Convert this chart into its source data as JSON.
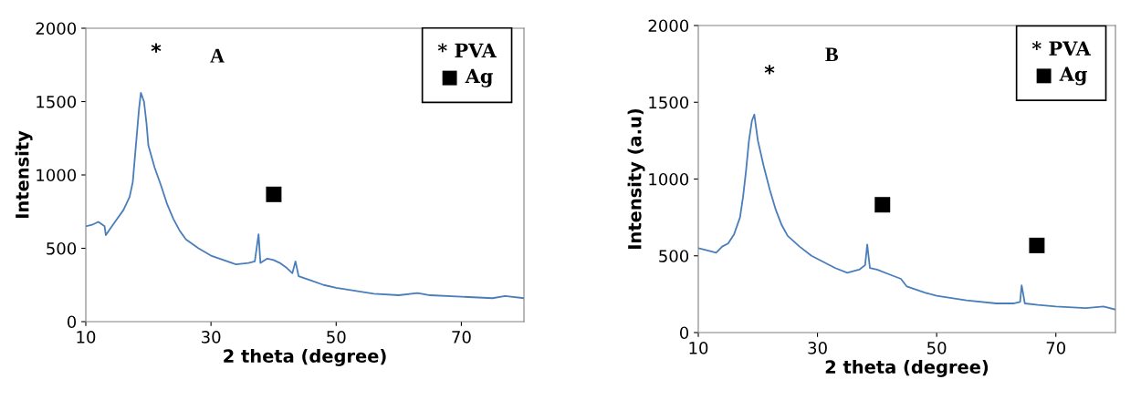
{
  "chart_data": [
    {
      "type": "line",
      "title": "A",
      "xlabel": "2 theta (degree)",
      "ylabel": "Intensity",
      "xlim": [
        10,
        80
      ],
      "xticks": [
        10,
        30,
        50,
        70
      ],
      "ylim": [
        0,
        2000
      ],
      "yticks": [
        0,
        500,
        1000,
        1500,
        2000
      ],
      "grid": false,
      "legend": false,
      "series": [
        {
          "color": "#4a7ebb",
          "x": [
            10,
            11,
            12,
            13,
            13.2,
            14,
            15,
            16,
            17,
            17.5,
            18,
            18.5,
            18.8,
            19.3,
            19.7,
            20,
            21,
            22,
            23,
            24,
            25,
            26,
            28,
            30,
            32,
            34,
            36,
            37,
            37.6,
            37.9,
            39,
            40,
            41,
            42,
            43,
            43.5,
            44,
            46,
            48,
            50,
            53,
            56,
            60,
            63,
            65,
            70,
            75,
            77,
            80
          ],
          "values": [
            650,
            660,
            680,
            650,
            590,
            640,
            700,
            760,
            850,
            950,
            1200,
            1450,
            1560,
            1500,
            1350,
            1200,
            1050,
            930,
            800,
            700,
            620,
            560,
            500,
            450,
            420,
            390,
            400,
            410,
            596,
            400,
            430,
            420,
            400,
            370,
            330,
            411,
            310,
            280,
            250,
            230,
            210,
            190,
            180,
            195,
            180,
            170,
            160,
            175,
            160
          ]
        }
      ],
      "annotations": [
        {
          "text": "*",
          "x": 18.8,
          "y": 1560
        },
        {
          "text": "■",
          "x": 37.6,
          "y": 596
        },
        "* PVA",
        "■ Ag"
      ]
    },
    {
      "type": "line",
      "title": "B",
      "xlabel": "2 theta (degree)",
      "ylabel": "Intensity (a.u)",
      "xlim": [
        10,
        80
      ],
      "xticks": [
        10,
        30,
        50,
        70
      ],
      "ylim": [
        0,
        2000
      ],
      "yticks": [
        0,
        500,
        1000,
        1500,
        2000
      ],
      "grid": false,
      "legend": false,
      "series": [
        {
          "color": "#4a7ebb",
          "x": [
            10,
            12,
            13,
            14,
            15,
            16,
            17,
            17.5,
            18,
            18.5,
            19,
            19.4,
            20,
            21,
            22,
            23,
            24,
            25,
            27,
            29,
            31,
            33,
            35,
            37,
            38,
            38.35,
            38.8,
            40,
            42,
            44,
            45,
            48,
            50,
            55,
            60,
            63,
            64,
            64.26,
            64.8,
            67,
            70,
            75,
            78,
            80
          ],
          "values": [
            550,
            530,
            520,
            560,
            580,
            640,
            750,
            880,
            1050,
            1250,
            1380,
            1420,
            1250,
            1080,
            930,
            800,
            700,
            630,
            560,
            500,
            460,
            420,
            390,
            410,
            440,
            573,
            420,
            410,
            380,
            350,
            300,
            260,
            240,
            210,
            190,
            190,
            200,
            308,
            190,
            180,
            170,
            160,
            170,
            150
          ]
        }
      ],
      "annotations": [
        {
          "text": "*",
          "x": 19.4,
          "y": 1420
        },
        {
          "text": "■",
          "x": 38.35,
          "y": 573
        },
        {
          "text": "■",
          "x": 64.26,
          "y": 308
        },
        "* PVA",
        "■ Ag"
      ]
    }
  ]
}
